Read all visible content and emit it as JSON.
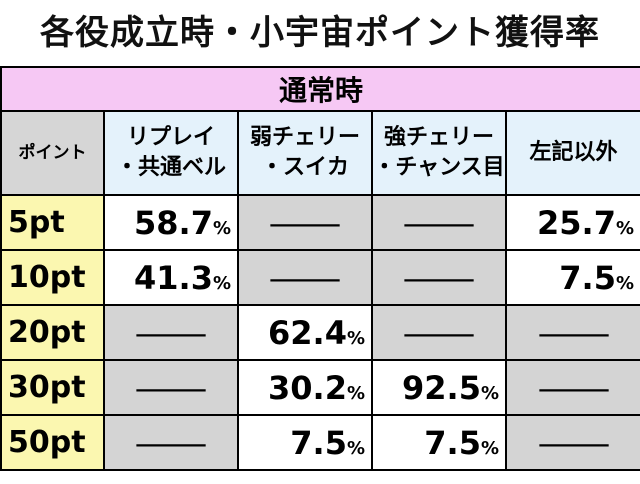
{
  "header": {
    "title": "各役成立時・小宇宙ポイント獲得率"
  },
  "table": {
    "section": "通常時",
    "columns": [
      "ポイント",
      "リプレイ\n・共通ベル",
      "弱チェリー\n・スイカ",
      "強チェリー\n・チャンス目",
      "左記以外"
    ],
    "rows": [
      [
        "5pt",
        "58.7%",
        "—",
        "—",
        "25.7%"
      ],
      [
        "10pt",
        "41.3%",
        "—",
        "—",
        "7.5%"
      ],
      [
        "20pt",
        "—",
        "62.4%",
        "—",
        "—"
      ],
      [
        "30pt",
        "—",
        "30.2%",
        "92.5%",
        "—"
      ],
      [
        "50pt",
        "—",
        "7.5%",
        "7.5%",
        "—"
      ]
    ]
  }
}
